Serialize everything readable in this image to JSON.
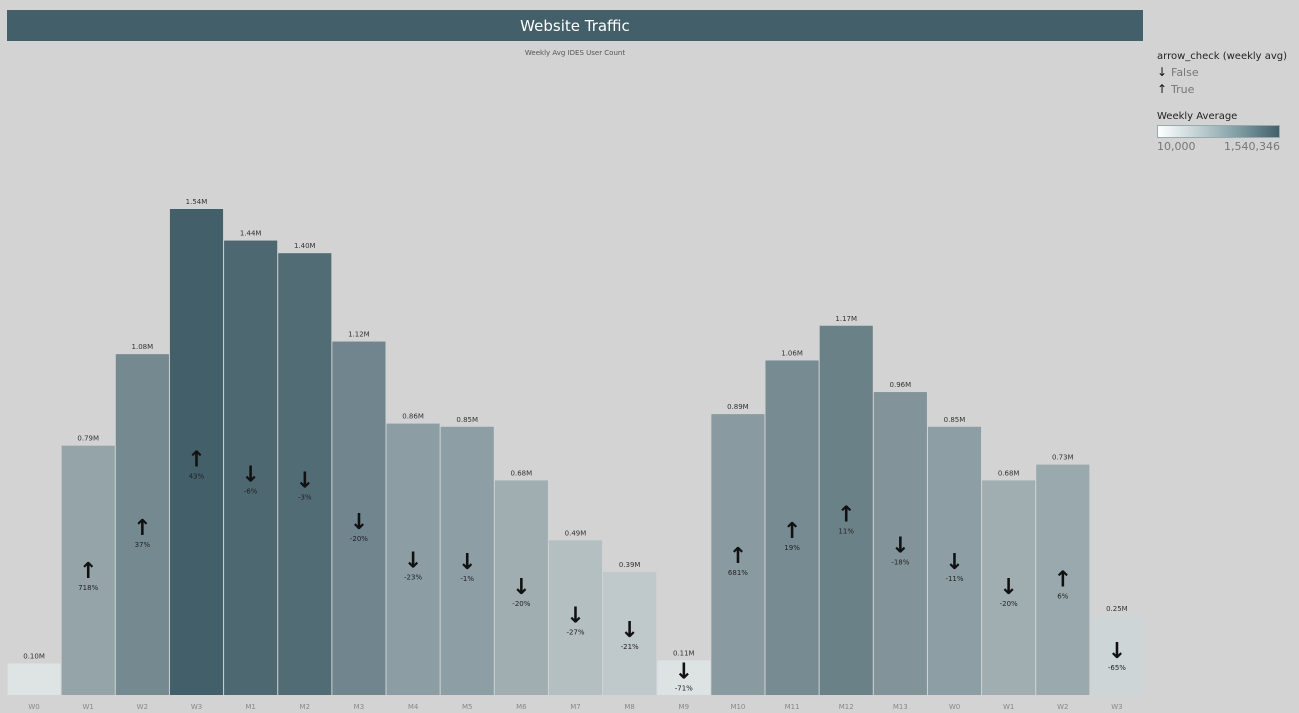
{
  "header": {
    "title": "Website Traffic",
    "subtitle": "Weekly Avg IDES User Count"
  },
  "legend": {
    "arrow_title": "arrow_check (weekly avg)",
    "false_label": "False",
    "true_label": "True",
    "color_title": "Weekly Average",
    "color_min": "10,000",
    "color_max": "1,540,346"
  },
  "colors": {
    "low": "#e9ecec",
    "high": "#435f69",
    "header": "#435f69",
    "background": "#d3d3d3"
  },
  "chart_data": {
    "type": "bar",
    "title": "Website Traffic",
    "subtitle": "Weekly Avg IDES User Count",
    "categories": [
      "W0",
      "W1",
      "W2",
      "W3",
      "M1",
      "M2",
      "M3",
      "M4",
      "M5",
      "M6",
      "M7",
      "M8",
      "M9",
      "M10",
      "M11",
      "M12",
      "M13",
      "W0",
      "W1",
      "W2",
      "W3"
    ],
    "values": [
      100000,
      790000,
      1080000,
      1540000,
      1440000,
      1400000,
      1120000,
      860000,
      850000,
      680000,
      490000,
      390000,
      110000,
      890000,
      1060000,
      1170000,
      960000,
      850000,
      680000,
      730000,
      250000
    ],
    "value_labels": [
      "0.10M",
      "0.79M",
      "1.08M",
      "1.54M",
      "1.44M",
      "1.40M",
      "1.12M",
      "0.86M",
      "0.85M",
      "0.68M",
      "0.49M",
      "0.39M",
      "0.11M",
      "0.89M",
      "1.06M",
      "1.17M",
      "0.96M",
      "0.85M",
      "0.68M",
      "0.73M",
      "0.25M"
    ],
    "change_labels": [
      "",
      "718%",
      "37%",
      "43%",
      "-6%",
      "-3%",
      "-20%",
      "-23%",
      "-1%",
      "-20%",
      "-27%",
      "-21%",
      "-71%",
      "681%",
      "19%",
      "11%",
      "-18%",
      "-11%",
      "-20%",
      "6%",
      "-65%"
    ],
    "arrow_check": [
      null,
      true,
      true,
      true,
      false,
      false,
      false,
      false,
      false,
      false,
      false,
      false,
      false,
      true,
      true,
      true,
      false,
      false,
      false,
      true,
      false
    ],
    "ylim": [
      0,
      1540346
    ],
    "grid": false,
    "legend_position": "right"
  }
}
